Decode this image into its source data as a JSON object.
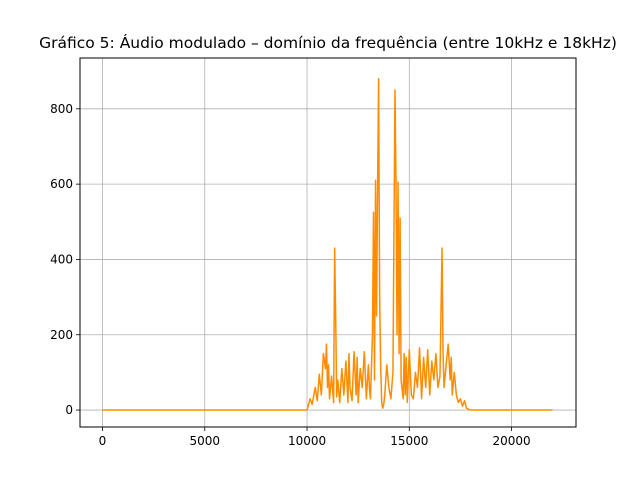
{
  "chart_data": {
    "type": "line",
    "title": "Gráfico 5: Áudio modulado – domínio da frequência (entre 10kHz e 18kHz)",
    "xlabel": "",
    "ylabel": "",
    "xlim": [
      -1100,
      23150
    ],
    "ylim": [
      -45,
      935
    ],
    "xticks": [
      0,
      5000,
      10000,
      15000,
      20000
    ],
    "yticks": [
      0,
      200,
      400,
      600,
      800
    ],
    "grid": true,
    "series": [
      {
        "color": "#ff8c00",
        "x": [
          0,
          2000,
          4000,
          6000,
          8000,
          10000,
          10150,
          10250,
          10400,
          10500,
          10600,
          10700,
          10800,
          10900,
          10950,
          11000,
          11050,
          11100,
          11200,
          11300,
          11350,
          11400,
          11450,
          11500,
          11600,
          11700,
          11800,
          11900,
          12000,
          12050,
          12100,
          12200,
          12300,
          12400,
          12450,
          12500,
          12600,
          12700,
          12800,
          12900,
          13000,
          13050,
          13100,
          13200,
          13250,
          13300,
          13350,
          13400,
          13450,
          13500,
          13550,
          13600,
          13650,
          13700,
          13750,
          13800,
          13900,
          14000,
          14100,
          14200,
          14300,
          14350,
          14400,
          14450,
          14500,
          14550,
          14600,
          14700,
          14750,
          14800,
          14850,
          14900,
          15000,
          15100,
          15200,
          15300,
          15400,
          15500,
          15600,
          15700,
          15800,
          15900,
          16000,
          16100,
          16200,
          16300,
          16400,
          16500,
          16600,
          16650,
          16700,
          16800,
          16900,
          17000,
          17050,
          17100,
          17200,
          17300,
          17400,
          17500,
          17600,
          17700,
          17800,
          17900,
          18000,
          20000,
          22000
        ],
        "y": [
          0,
          0,
          0,
          0,
          0,
          0,
          30,
          15,
          60,
          25,
          95,
          40,
          150,
          110,
          175,
          60,
          120,
          30,
          90,
          20,
          430,
          250,
          35,
          80,
          20,
          110,
          40,
          130,
          20,
          150,
          60,
          25,
          155,
          40,
          140,
          20,
          110,
          60,
          155,
          30,
          120,
          60,
          30,
          200,
          525,
          80,
          610,
          250,
          600,
          880,
          300,
          120,
          20,
          5,
          15,
          40,
          120,
          60,
          30,
          100,
          850,
          600,
          200,
          605,
          150,
          510,
          80,
          30,
          150,
          40,
          140,
          20,
          160,
          40,
          30,
          100,
          60,
          165,
          30,
          140,
          60,
          160,
          40,
          130,
          80,
          150,
          60,
          90,
          430,
          150,
          60,
          120,
          175,
          80,
          140,
          40,
          100,
          40,
          20,
          30,
          10,
          25,
          5,
          2,
          0,
          0,
          0
        ]
      }
    ]
  }
}
